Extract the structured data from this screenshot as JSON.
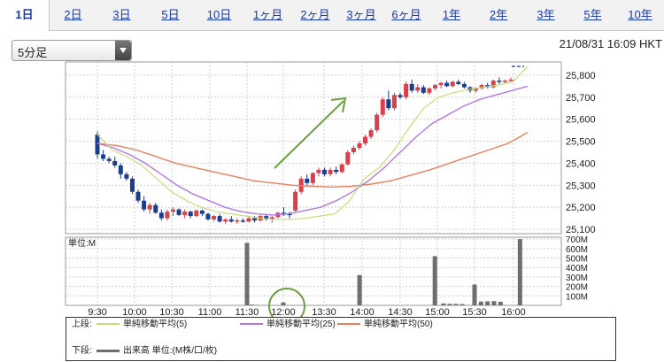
{
  "tabs": [
    {
      "label": "1日",
      "active": true
    },
    {
      "label": "2日"
    },
    {
      "label": "3日"
    },
    {
      "label": "5日"
    },
    {
      "label": "10日"
    },
    {
      "label": "1ヶ月"
    },
    {
      "label": "2ヶ月"
    },
    {
      "label": "3ヶ月"
    },
    {
      "label": "6ヶ月"
    },
    {
      "label": "1年"
    },
    {
      "label": "2年"
    },
    {
      "label": "3年"
    },
    {
      "label": "5年"
    },
    {
      "label": "10年"
    }
  ],
  "interval_select": {
    "value": "5分足"
  },
  "timestamp": "21/08/31 16:09 HKT",
  "colors": {
    "up": "#d8414a",
    "down": "#1c3c8c",
    "ma5": "#c8dc7a",
    "ma25": "#b478e6",
    "ma50": "#e88060",
    "volume": "#6e6e6e",
    "arrow": "#6aa040",
    "circle": "#6aa040"
  },
  "legend": {
    "upper_label": "上段:",
    "ma5": "単純移動平均(5)",
    "ma25": "単純移動平均(25)",
    "ma50": "単純移動平均(50)",
    "lower_label": "下段:",
    "volume": "出来高 単位:(M株/口/枚)"
  },
  "chart_data": [
    {
      "type": "candlestick",
      "x_ticks": [
        "9:30",
        "10:00",
        "10:30",
        "11:00",
        "11:30",
        "12:00",
        "13:30",
        "14:00",
        "14:30",
        "15:00",
        "15:30",
        "16:00"
      ],
      "y_ticks": [
        "25,800",
        "25,700",
        "25,600",
        "25,500",
        "25,400",
        "25,300",
        "25,200",
        "25,100"
      ],
      "ylim": [
        25080,
        25860
      ],
      "candles": [
        [
          25530,
          25545,
          25420,
          25440
        ],
        [
          25440,
          25460,
          25410,
          25420
        ],
        [
          25420,
          25430,
          25400,
          25410
        ],
        [
          25410,
          25430,
          25380,
          25390
        ],
        [
          25390,
          25400,
          25330,
          25350
        ],
        [
          25350,
          25360,
          25320,
          25330
        ],
        [
          25330,
          25340,
          25260,
          25270
        ],
        [
          25270,
          25280,
          25220,
          25230
        ],
        [
          25230,
          25250,
          25180,
          25190
        ],
        [
          25190,
          25220,
          25170,
          25210
        ],
        [
          25210,
          25220,
          25170,
          25175
        ],
        [
          25175,
          25190,
          25140,
          25150
        ],
        [
          25150,
          25190,
          25140,
          25180
        ],
        [
          25180,
          25200,
          25160,
          25190
        ],
        [
          25190,
          25195,
          25160,
          25165
        ],
        [
          25165,
          25190,
          25150,
          25180
        ],
        [
          25180,
          25185,
          25150,
          25160
        ],
        [
          25160,
          25190,
          25155,
          25185
        ],
        [
          25185,
          25190,
          25160,
          25170
        ],
        [
          25170,
          25175,
          25140,
          25145
        ],
        [
          25145,
          25165,
          25135,
          25160
        ],
        [
          25160,
          25170,
          25130,
          25135
        ],
        [
          25135,
          25150,
          25125,
          25145
        ],
        [
          25145,
          25160,
          25130,
          25135
        ],
        [
          25135,
          25150,
          25125,
          25140
        ],
        [
          25140,
          25150,
          25130,
          25135
        ],
        [
          25135,
          25160,
          25130,
          25150
        ],
        [
          25150,
          25160,
          25130,
          25140
        ],
        [
          25140,
          25165,
          25135,
          25160
        ],
        [
          25160,
          25170,
          25140,
          25145
        ],
        [
          25145,
          25160,
          25130,
          25155
        ],
        [
          25155,
          25180,
          25150,
          25175
        ],
        [
          25175,
          25200,
          25160,
          25170
        ],
        [
          25170,
          25180,
          25150,
          25165
        ],
        [
          25185,
          25280,
          25180,
          25270
        ],
        [
          25270,
          25340,
          25260,
          25330
        ],
        [
          25330,
          25350,
          25300,
          25310
        ],
        [
          25310,
          25360,
          25300,
          25355
        ],
        [
          25355,
          25380,
          25340,
          25370
        ],
        [
          25370,
          25380,
          25340,
          25350
        ],
        [
          25350,
          25380,
          25340,
          25370
        ],
        [
          25370,
          25385,
          25350,
          25360
        ],
        [
          25360,
          25400,
          25355,
          25395
        ],
        [
          25395,
          25460,
          25390,
          25450
        ],
        [
          25450,
          25480,
          25440,
          25470
        ],
        [
          25470,
          25500,
          25460,
          25490
        ],
        [
          25490,
          25530,
          25480,
          25520
        ],
        [
          25520,
          25560,
          25510,
          25550
        ],
        [
          25550,
          25630,
          25540,
          25620
        ],
        [
          25620,
          25700,
          25610,
          25690
        ],
        [
          25690,
          25730,
          25640,
          25650
        ],
        [
          25650,
          25720,
          25640,
          25710
        ],
        [
          25710,
          25720,
          25690,
          25700
        ],
        [
          25700,
          25770,
          25690,
          25760
        ],
        [
          25760,
          25780,
          25720,
          25730
        ],
        [
          25730,
          25760,
          25720,
          25745
        ],
        [
          25745,
          25755,
          25715,
          25720
        ],
        [
          25720,
          25745,
          25710,
          25740
        ],
        [
          25740,
          25760,
          25730,
          25755
        ],
        [
          25755,
          25770,
          25740,
          25765
        ],
        [
          25765,
          25775,
          25745,
          25750
        ],
        [
          25750,
          25775,
          25745,
          25770
        ],
        [
          25770,
          25780,
          25755,
          25760
        ],
        [
          25760,
          25770,
          25740,
          25745
        ],
        [
          25745,
          25750,
          25720,
          25730
        ],
        [
          25730,
          25745,
          25720,
          25740
        ],
        [
          25740,
          25760,
          25735,
          25755
        ],
        [
          25755,
          25765,
          25740,
          25745
        ],
        [
          25745,
          25780,
          25740,
          25775
        ],
        [
          25775,
          25790,
          25760,
          25770
        ],
        [
          25770,
          25780,
          25760,
          25775
        ],
        [
          25775,
          25790,
          25770,
          25780
        ]
      ],
      "ma5": [
        25530,
        25460,
        25430,
        25390,
        25330,
        25270,
        25230,
        25200,
        25180,
        25170,
        25160,
        25150,
        25145,
        25145,
        25150,
        25160,
        25170,
        25230,
        25330,
        25380,
        25460,
        25560,
        25650,
        25700,
        25720,
        25735,
        25745,
        25755,
        25770,
        25840
      ],
      "ma25": [
        25490,
        25470,
        25440,
        25400,
        25350,
        25300,
        25260,
        25230,
        25200,
        25180,
        25170,
        25165,
        25170,
        25185,
        25200,
        25230,
        25270,
        25320,
        25380,
        25450,
        25520,
        25580,
        25620,
        25660,
        25690,
        25710,
        25730,
        25750
      ],
      "ma50": [
        25490,
        25480,
        25460,
        25430,
        25400,
        25380,
        25360,
        25340,
        25320,
        25310,
        25300,
        25295,
        25292,
        25295,
        25305,
        25320,
        25345,
        25370,
        25400,
        25430,
        25460,
        25490,
        25540
      ]
    },
    {
      "type": "bar",
      "label": "単位:M",
      "y_ticks": [
        "700M",
        "600M",
        "500M",
        "400M",
        "300M",
        "200M",
        "100M"
      ],
      "ylim": [
        0,
        720
      ],
      "bars": [
        {
          "t": "9:30",
          "v": 4
        },
        {
          "t": "11:30",
          "v": 660
        },
        {
          "t": "11:34",
          "v": 8
        },
        {
          "t": "11:38",
          "v": 4
        },
        {
          "t": "12:00",
          "v": 30
        },
        {
          "t": "13:58",
          "v": 320
        },
        {
          "t": "14:58",
          "v": 520
        },
        {
          "t": "15:05",
          "v": 20
        },
        {
          "t": "15:10",
          "v": 16
        },
        {
          "t": "15:15",
          "v": 15
        },
        {
          "t": "15:20",
          "v": 14
        },
        {
          "t": "15:30",
          "v": 220
        },
        {
          "t": "15:35",
          "v": 40
        },
        {
          "t": "15:40",
          "v": 42
        },
        {
          "t": "15:45",
          "v": 45
        },
        {
          "t": "15:50",
          "v": 38
        },
        {
          "t": "16:05",
          "v": 700
        }
      ]
    }
  ]
}
